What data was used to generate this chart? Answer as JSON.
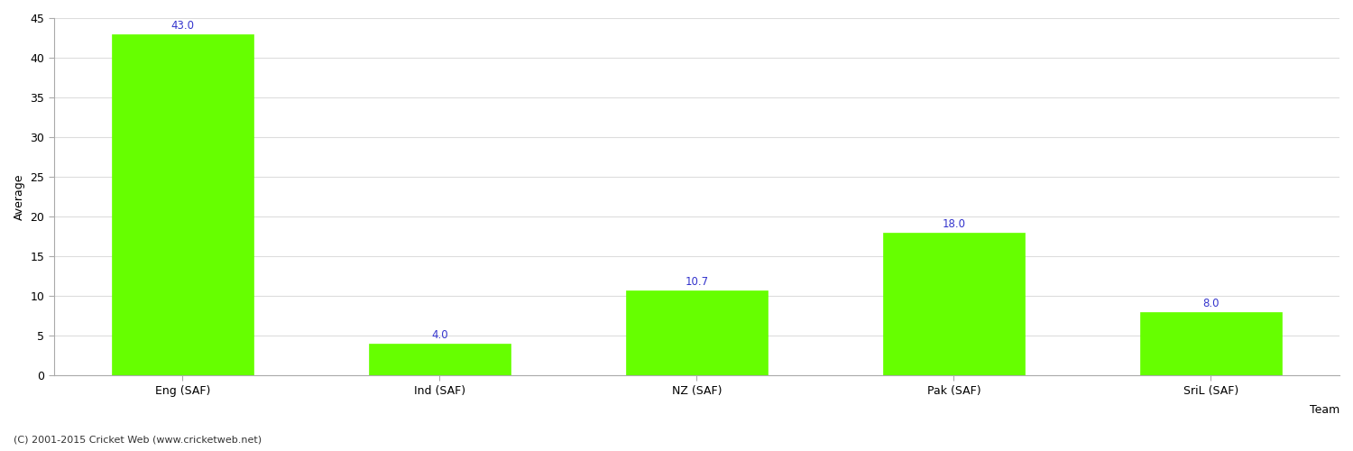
{
  "categories": [
    "Eng (SAF)",
    "Ind (SAF)",
    "NZ (SAF)",
    "Pak (SAF)",
    "SriL (SAF)"
  ],
  "values": [
    43.0,
    4.0,
    10.7,
    18.0,
    8.0
  ],
  "bar_color": "#66ff00",
  "bar_edge_color": "#66ff00",
  "value_color": "#3333cc",
  "value_fontsize": 8.5,
  "xlabel": "Team",
  "ylabel": "Average",
  "ylim": [
    0,
    45
  ],
  "yticks": [
    0,
    5,
    10,
    15,
    20,
    25,
    30,
    35,
    40,
    45
  ],
  "grid_color": "#dddddd",
  "background_color": "#ffffff",
  "footer": "(C) 2001-2015 Cricket Web (www.cricketweb.net)",
  "footer_fontsize": 8,
  "ylabel_fontsize": 9,
  "tick_fontsize": 9,
  "bar_width": 0.55
}
